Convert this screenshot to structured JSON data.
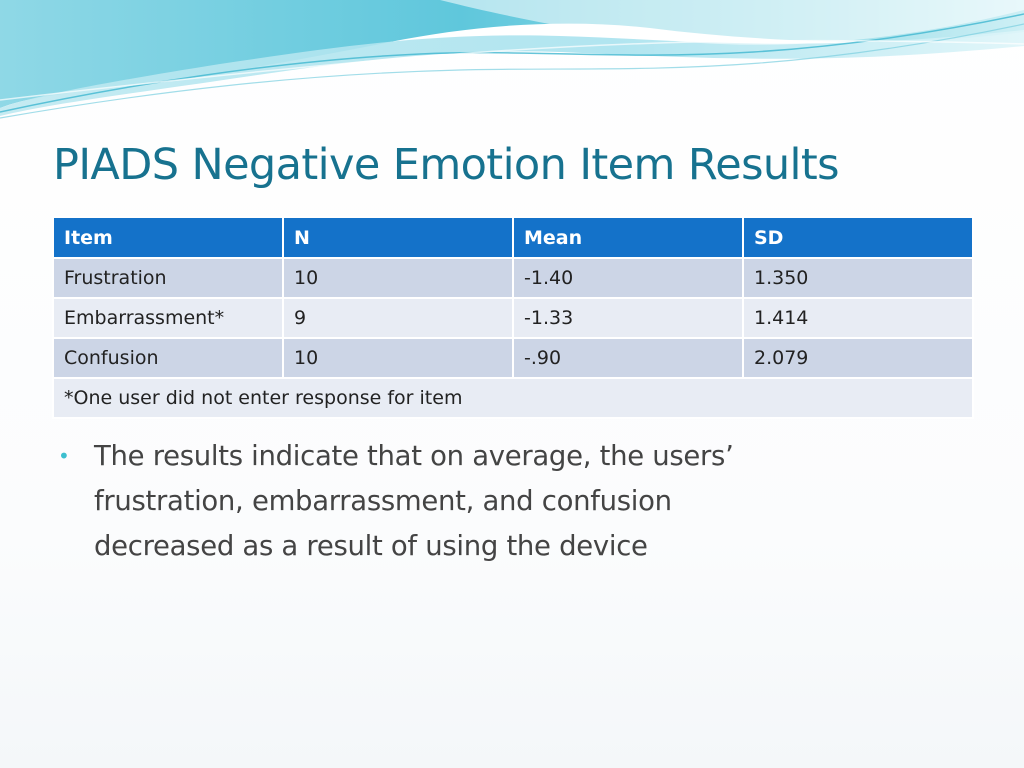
{
  "slide": {
    "title": "PIADS Negative Emotion Item Results",
    "table": {
      "headers": [
        "Item",
        "N",
        "Mean",
        "SD"
      ],
      "rows": [
        [
          "Frustration",
          "10",
          "-1.40",
          "1.350"
        ],
        [
          "Embarrassment*",
          "9",
          "-1.33",
          "1.414"
        ],
        [
          "Confusion",
          "10",
          "-.90",
          "2.079"
        ]
      ],
      "footnote": "*One user did not enter response for item"
    },
    "bullets": [
      "The results indicate that on average, the users’ frustration, embarrassment, and confusion decreased as a result of using the device"
    ],
    "colors": {
      "title": "#17728f",
      "header_bg": "#1472c9",
      "row_dark": "#ccd5e6",
      "row_light": "#e8ecf4",
      "bullet": "#3dbfcf",
      "wave_accent": "#5fc7dc"
    },
    "icons": [
      "bullet-dot-icon",
      "wave-decoration"
    ]
  }
}
